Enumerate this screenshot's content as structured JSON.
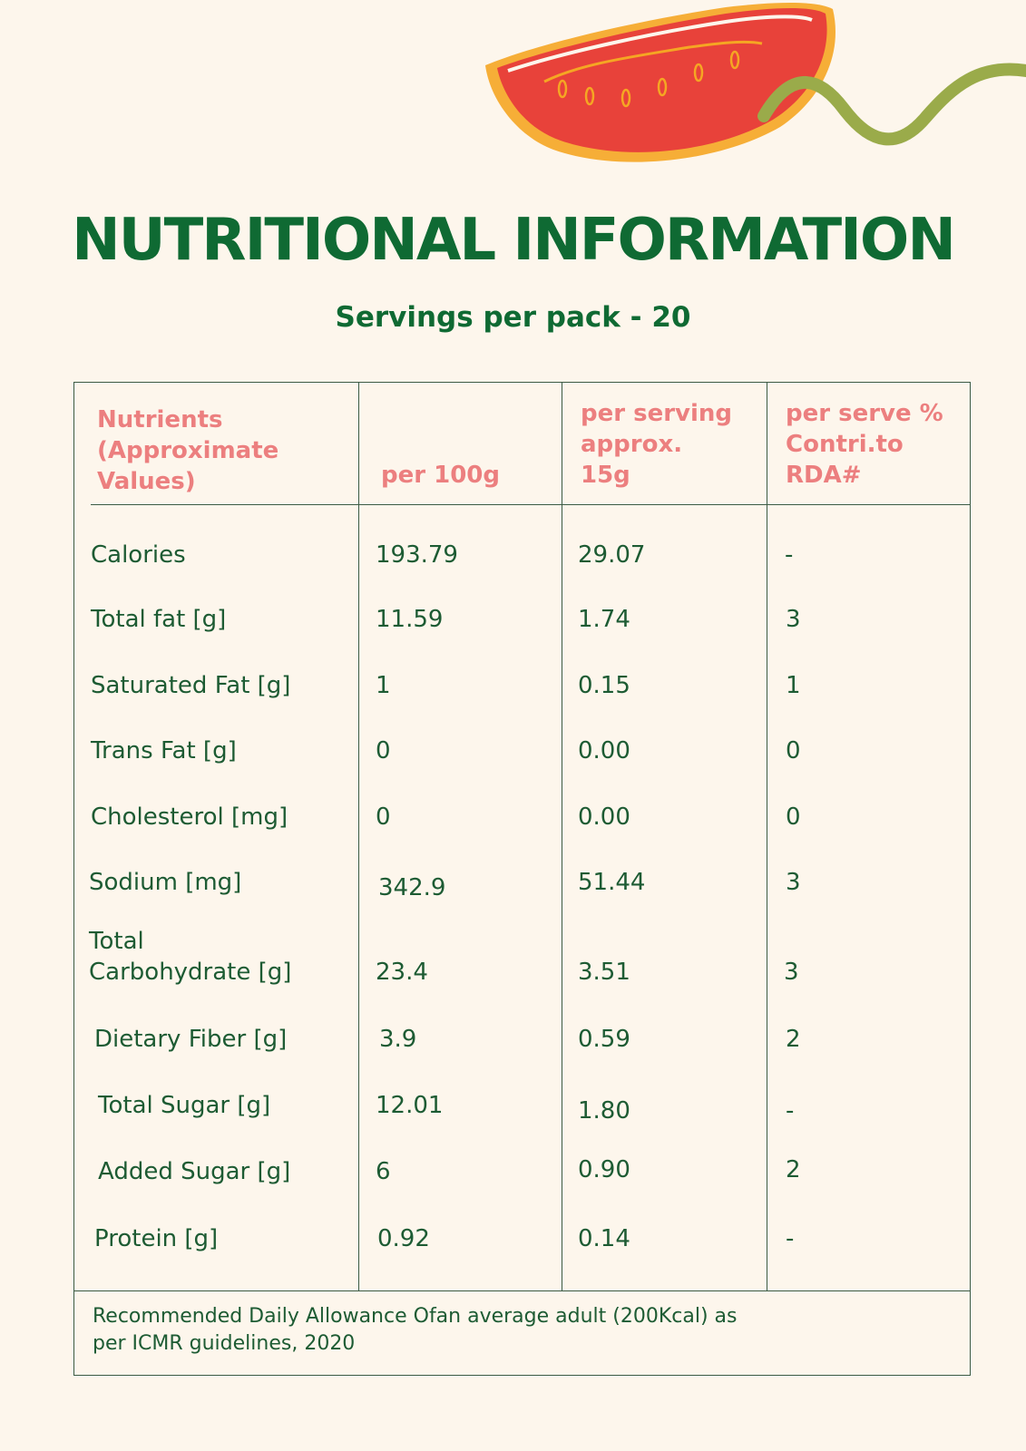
{
  "title": "NUTRITIONAL INFORMATION",
  "subtitle": "Servings per pack - 20",
  "table": {
    "headers": {
      "nutrients": "Nutrients\n(Approximate\nValues)",
      "per100": "per 100g",
      "perServing": "per serving\napprox.\n15g",
      "rda": "per serve %\nContri.to\nRDA#"
    },
    "rows": [
      {
        "name": "Calories",
        "per100": "193.79",
        "serving": "29.07",
        "rda": "-"
      },
      {
        "name": "Total fat [g]",
        "per100": "11.59",
        "serving": "1.74",
        "rda": "3"
      },
      {
        "name": "Saturated Fat [g]",
        "per100": "1",
        "serving": "0.15",
        "rda": "1"
      },
      {
        "name": "Trans Fat [g]",
        "per100": "0",
        "serving": "0.00",
        "rda": "0"
      },
      {
        "name": "Cholesterol [mg]",
        "per100": "0",
        "serving": "0.00",
        "rda": "0"
      },
      {
        "name": "Sodium [mg]",
        "per100": "342.9",
        "serving": "51.44",
        "rda": "3"
      },
      {
        "name": "Total\nCarbohydrate [g]",
        "per100": "23.4",
        "serving": "3.51",
        "rda": "3"
      },
      {
        "name": "Dietary Fiber [g]",
        "per100": "3.9",
        "serving": "0.59",
        "rda": "2"
      },
      {
        "name": "Total Sugar [g]",
        "per100": "12.01",
        "serving": "1.80",
        "rda": "-"
      },
      {
        "name": "Added Sugar [g]",
        "per100": "6",
        "serving": "0.90",
        "rda": "2"
      },
      {
        "name": "Protein [g]",
        "per100": "0.92",
        "serving": "0.14",
        "rda": "-"
      }
    ],
    "footnote": "Recommended Daily Allowance Ofan average adult (200Kcal) as per ICMR guidelines, 2020"
  },
  "colors": {
    "background": "#fdf6ec",
    "title": "#0f6a33",
    "header": "#ec7f7f",
    "text": "#1d5b33",
    "tomato": "#e8423a",
    "vine": "#9aab4a"
  },
  "decoration": {
    "icon": "tomato-slice-icon"
  }
}
